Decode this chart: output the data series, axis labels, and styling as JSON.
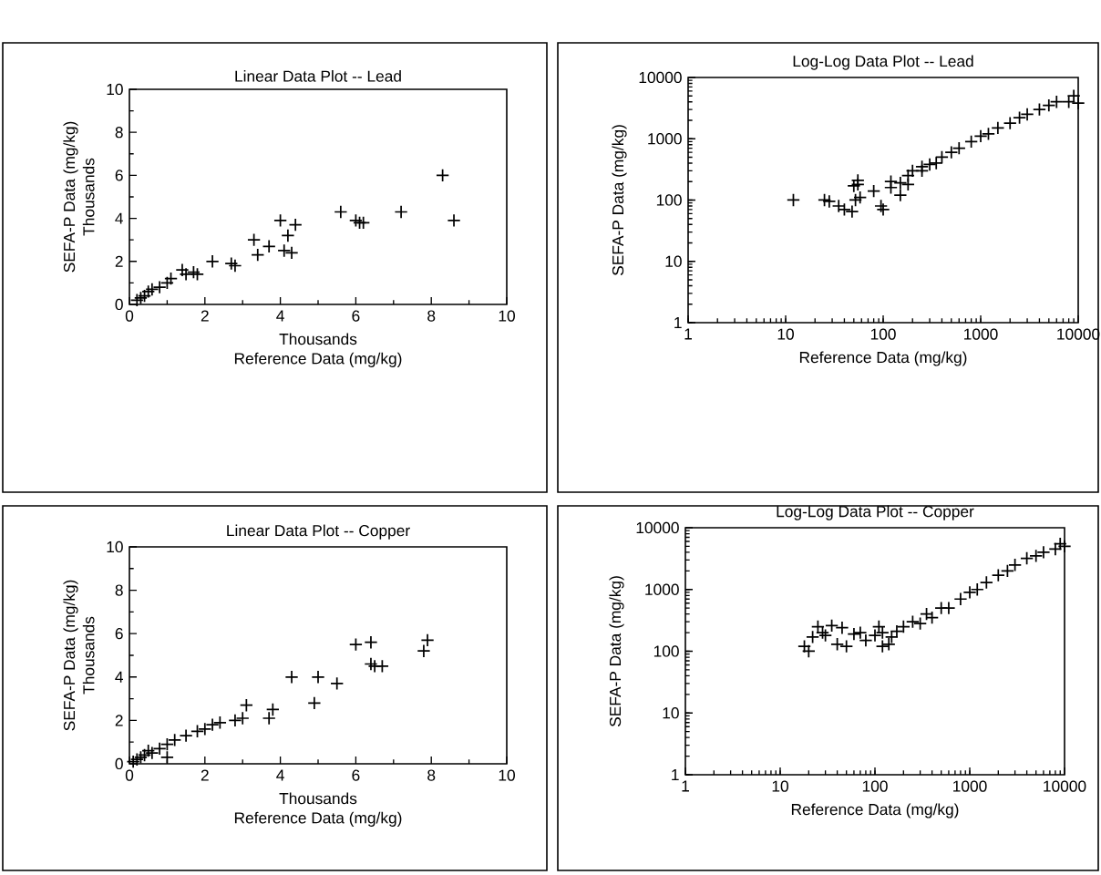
{
  "chart_data": [
    {
      "type": "scatter",
      "title": "Linear Data Plot -- Lead",
      "xlabel": "Reference Data (mg/kg)",
      "ylabel": "SEFA-P Data (mg/kg)",
      "annotations": [
        "Thousands",
        "Thousands"
      ],
      "color": "#000000",
      "marker": "cross",
      "xlim": [
        0,
        10
      ],
      "ylim": [
        0,
        10
      ],
      "xticks": [
        0,
        2,
        4,
        6,
        8,
        10
      ],
      "yticks": [
        0,
        2,
        4,
        6,
        8,
        10
      ],
      "x": [
        8.3,
        8.6,
        7.2,
        5.6,
        6.0,
        6.1,
        6.2,
        4.4,
        4.0,
        3.7,
        3.3,
        3.4,
        4.2,
        4.1,
        4.3,
        2.8,
        2.7,
        2.2,
        1.7,
        1.5,
        1.4,
        1.8,
        1.1,
        1.0,
        0.8,
        0.6,
        0.5,
        0.4,
        0.3,
        0.2
      ],
      "values": [
        6.0,
        3.9,
        4.3,
        4.3,
        3.9,
        3.8,
        3.8,
        3.7,
        3.9,
        2.7,
        3.0,
        2.3,
        3.2,
        2.5,
        2.4,
        1.8,
        1.9,
        2.0,
        1.5,
        1.4,
        1.6,
        1.4,
        1.2,
        1.0,
        0.8,
        0.7,
        0.6,
        0.4,
        0.3,
        0.2
      ]
    },
    {
      "type": "scatter",
      "title": "Log-Log Data Plot -- Lead",
      "xlabel": "Reference Data (mg/kg)",
      "ylabel": "SEFA-P Data (mg/kg)",
      "color": "#000000",
      "marker": "cross",
      "log": "xy",
      "xlim": [
        1,
        10000
      ],
      "ylim": [
        1,
        10000
      ],
      "xticks": [
        1,
        10,
        100,
        1000,
        10000
      ],
      "yticks": [
        1,
        10,
        100,
        1000,
        10000
      ],
      "x": [
        12,
        25,
        28,
        35,
        40,
        48,
        50,
        55,
        55,
        58,
        52,
        80,
        100,
        95,
        120,
        150,
        180,
        200,
        250,
        300,
        350,
        400,
        500,
        600,
        800,
        1000,
        1200,
        1500,
        2000,
        2500,
        3000,
        4000,
        5000,
        6000,
        8000,
        9000,
        10000,
        150,
        250,
        180,
        120
      ],
      "values": [
        100,
        100,
        95,
        80,
        70,
        65,
        170,
        210,
        180,
        110,
        100,
        140,
        70,
        80,
        160,
        190,
        250,
        300,
        350,
        380,
        400,
        500,
        600,
        700,
        900,
        1100,
        1200,
        1500,
        1800,
        2200,
        2500,
        3000,
        3500,
        4000,
        4000,
        5000,
        3800,
        120,
        300,
        180,
        200
      ]
    },
    {
      "type": "scatter",
      "title": "Linear Data Plot -- Copper",
      "xlabel": "Reference Data (mg/kg)",
      "ylabel": "SEFA-P Data (mg/kg)",
      "annotations": [
        "Thousands",
        "Thousands"
      ],
      "color": "#000000",
      "marker": "cross",
      "xlim": [
        0,
        10
      ],
      "ylim": [
        0,
        10
      ],
      "xticks": [
        0,
        2,
        4,
        6,
        8,
        10
      ],
      "yticks": [
        0,
        2,
        4,
        6,
        8,
        10
      ],
      "x": [
        7.9,
        7.8,
        6.4,
        6.0,
        6.4,
        6.5,
        6.7,
        5.5,
        5.0,
        4.3,
        4.9,
        3.8,
        3.7,
        3.1,
        3.0,
        2.8,
        2.4,
        2.2,
        2.0,
        1.8,
        1.5,
        1.2,
        1.0,
        0.8,
        0.6,
        0.5,
        0.4,
        0.3,
        0.2,
        0.1,
        1.0
      ],
      "values": [
        5.7,
        5.2,
        5.6,
        5.5,
        4.6,
        4.5,
        4.5,
        3.7,
        4.0,
        4.0,
        2.8,
        2.5,
        2.1,
        2.7,
        2.1,
        2.0,
        1.9,
        1.8,
        1.6,
        1.5,
        1.3,
        1.1,
        0.9,
        0.7,
        0.5,
        0.6,
        0.4,
        0.3,
        0.2,
        0.1,
        0.3
      ]
    },
    {
      "type": "scatter",
      "title": "Log-Log Data Plot -- Copper",
      "xlabel": "Reference Data (mg/kg)",
      "ylabel": "SEFA-P Data (mg/kg)",
      "color": "#000000",
      "marker": "cross",
      "log": "xy",
      "xlim": [
        1,
        10000
      ],
      "ylim": [
        1,
        10000
      ],
      "xticks": [
        1,
        10,
        100,
        1000,
        10000
      ],
      "yticks": [
        1,
        10,
        100,
        1000,
        10000
      ],
      "x": [
        18,
        20,
        22,
        25,
        28,
        30,
        35,
        40,
        45,
        50,
        60,
        70,
        80,
        100,
        110,
        120,
        120,
        140,
        150,
        170,
        200,
        250,
        300,
        350,
        400,
        500,
        600,
        800,
        1000,
        1200,
        1500,
        2000,
        2500,
        3000,
        4000,
        5000,
        6000,
        8000,
        9000,
        10000
      ],
      "values": [
        120,
        100,
        170,
        250,
        200,
        180,
        260,
        130,
        240,
        120,
        190,
        200,
        150,
        180,
        250,
        200,
        120,
        130,
        170,
        210,
        250,
        300,
        280,
        400,
        350,
        500,
        500,
        700,
        900,
        1000,
        1300,
        1700,
        2000,
        2500,
        3200,
        3500,
        4000,
        4500,
        5500,
        5000
      ]
    }
  ]
}
